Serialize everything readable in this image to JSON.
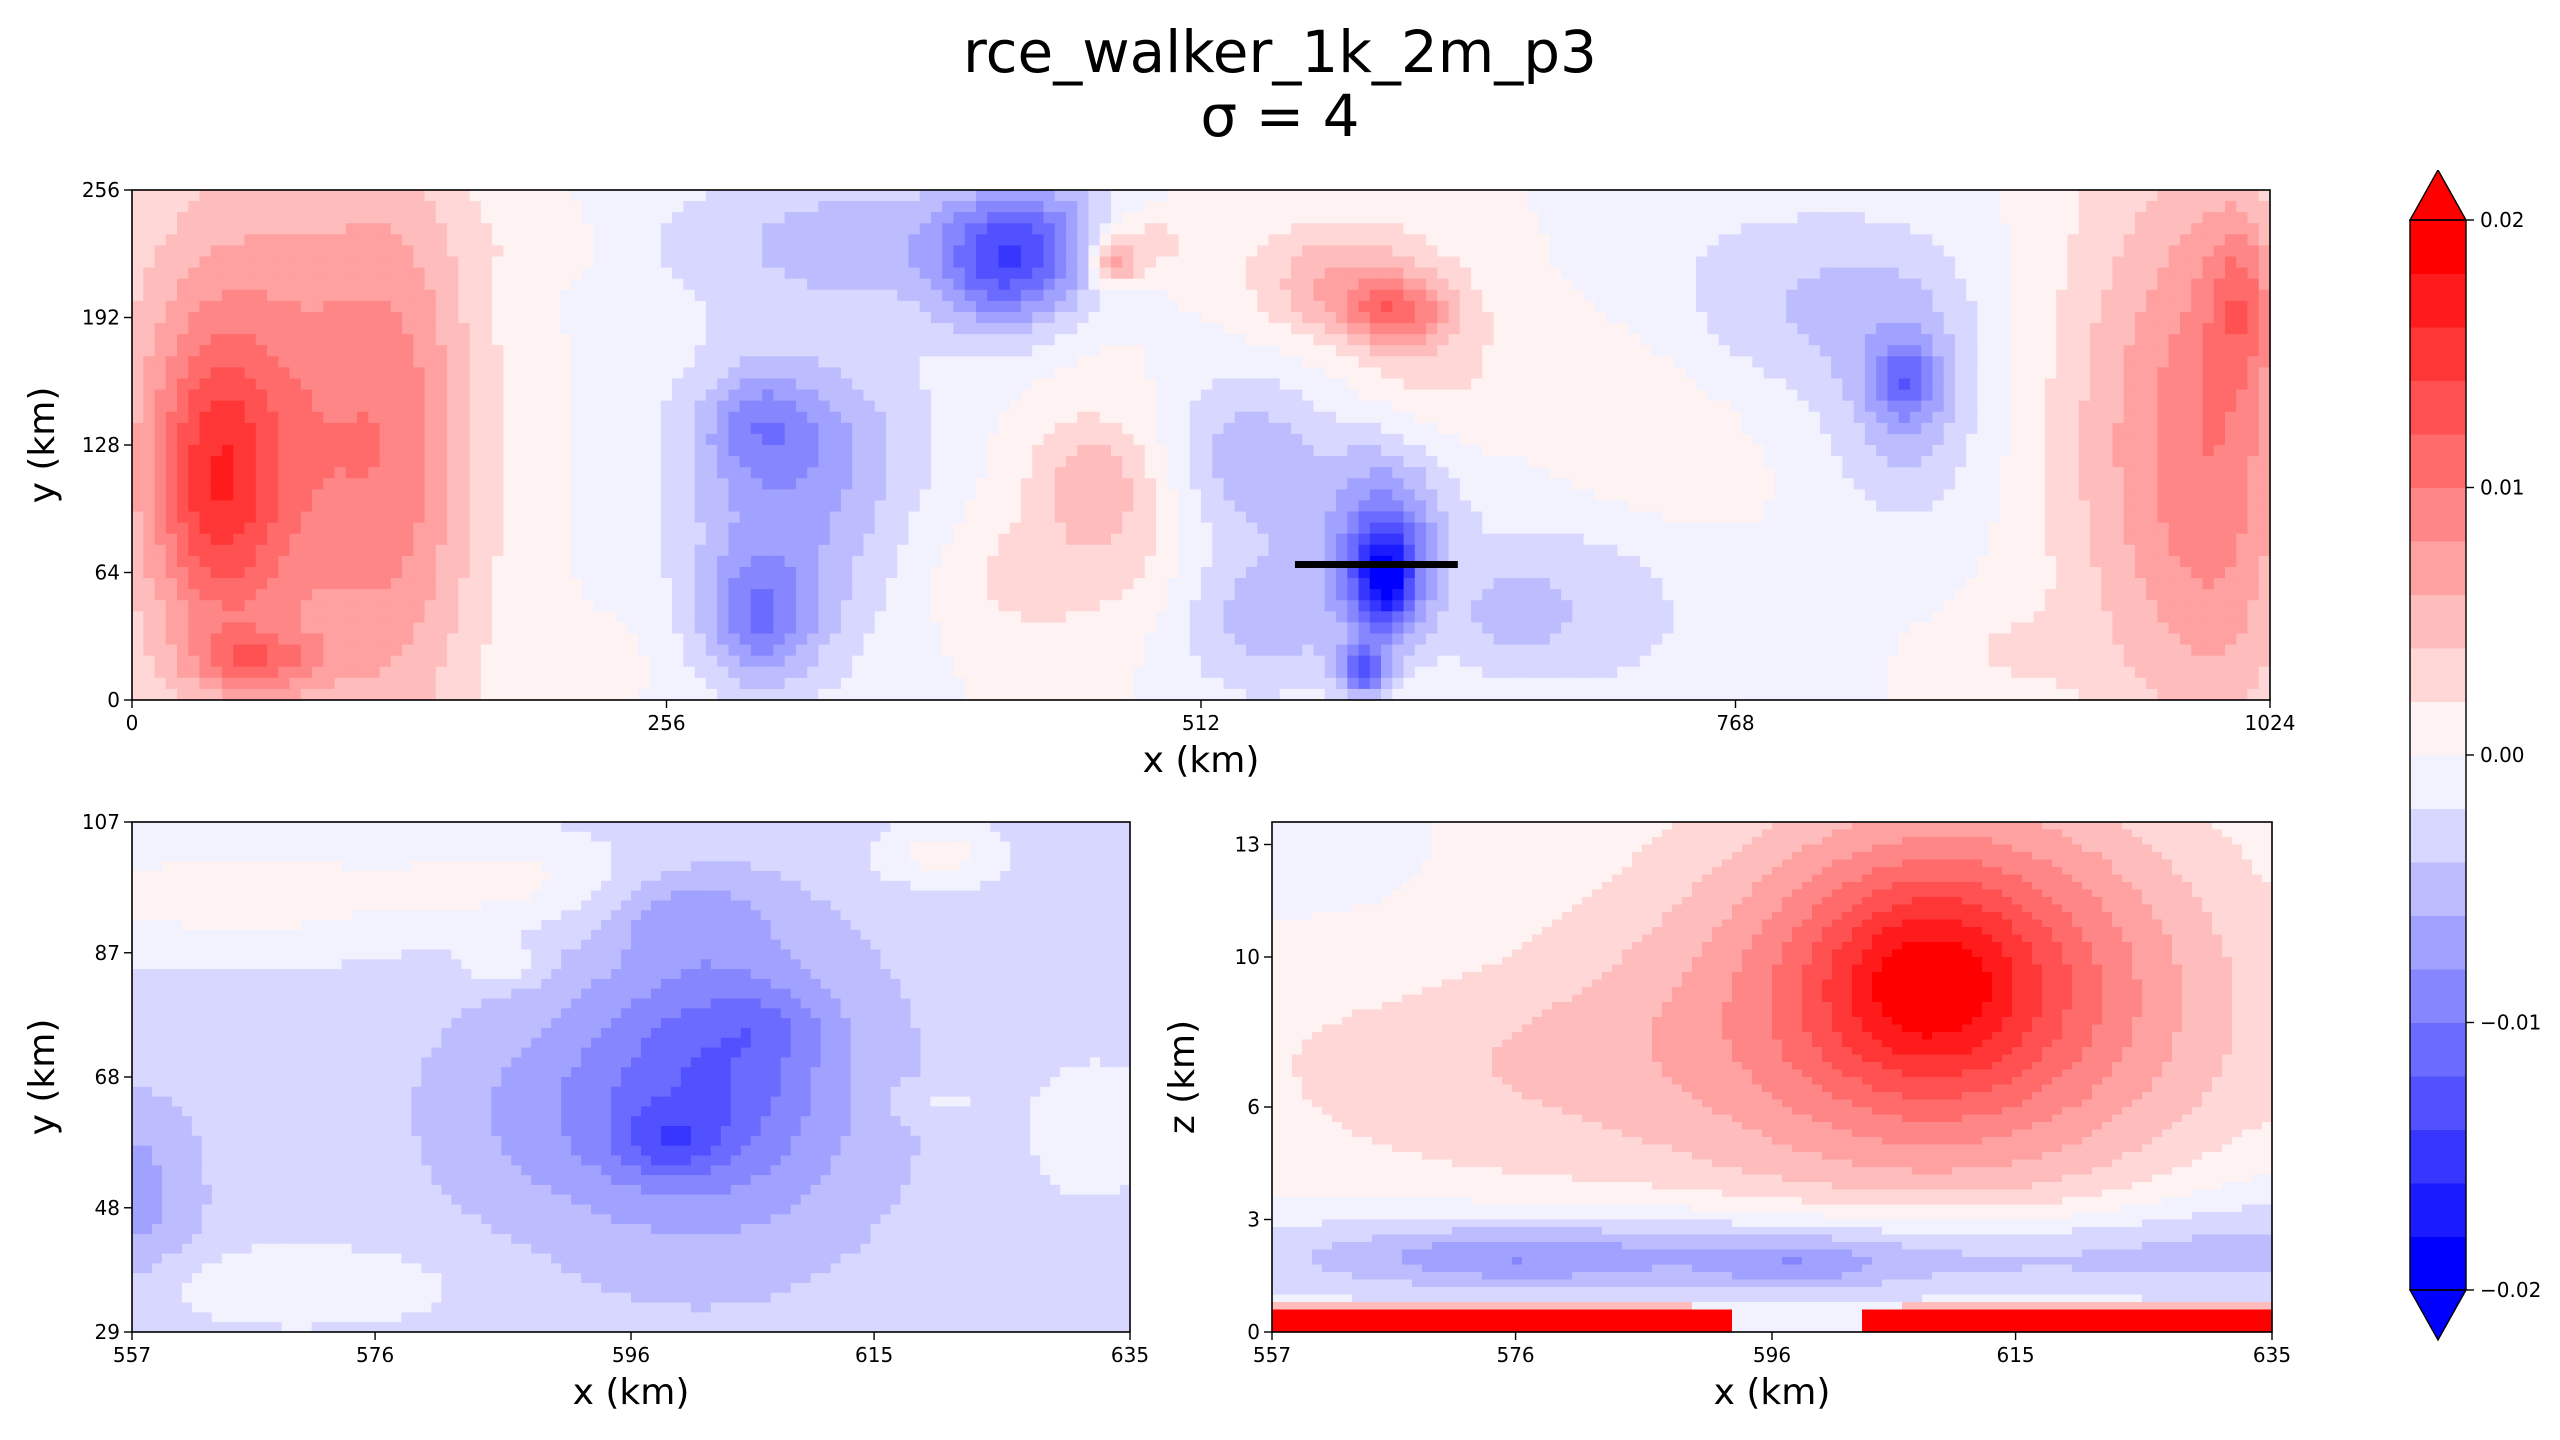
{
  "figure": {
    "title": "rce_walker_1k_2m_p3",
    "subtitle": "σ = 4"
  },
  "chart_data": [
    {
      "id": "top",
      "type": "heatmap",
      "xlabel": "x (km)",
      "ylabel": "y (km)",
      "xlim": [
        0,
        1024
      ],
      "ylim": [
        0,
        256
      ],
      "xticks": [
        "0",
        "256",
        "512",
        "768",
        "1024"
      ],
      "yticks": [
        "0",
        "64",
        "128",
        "192",
        "256"
      ],
      "xtick_values": [
        0,
        256,
        512,
        768,
        1024
      ],
      "ytick_values": [
        0,
        64,
        128,
        192,
        256
      ],
      "annotation_line": {
        "x0": 557,
        "x1": 635,
        "y": 68
      },
      "blobs": [
        {
          "x": 60,
          "y": 128,
          "rx": 70,
          "ry": 150,
          "v": 0.009
        },
        {
          "x": 40,
          "y": 110,
          "rx": 30,
          "ry": 70,
          "v": 0.008
        },
        {
          "x": 60,
          "y": 20,
          "rx": 30,
          "ry": 15,
          "v": 0.006
        },
        {
          "x": 130,
          "y": 128,
          "rx": 40,
          "ry": 160,
          "v": 0.006
        },
        {
          "x": 1000,
          "y": 128,
          "rx": 40,
          "ry": 150,
          "v": 0.009
        },
        {
          "x": 1010,
          "y": 200,
          "rx": 15,
          "ry": 40,
          "v": 0.005
        },
        {
          "x": 950,
          "y": 128,
          "rx": 40,
          "ry": 150,
          "v": 0.004
        },
        {
          "x": 320,
          "y": 130,
          "rx": 60,
          "ry": 50,
          "v": -0.006
        },
        {
          "x": 300,
          "y": 140,
          "rx": 25,
          "ry": 25,
          "v": -0.004
        },
        {
          "x": 310,
          "y": 60,
          "rx": 50,
          "ry": 60,
          "v": -0.005
        },
        {
          "x": 300,
          "y": 40,
          "rx": 25,
          "ry": 30,
          "v": -0.006
        },
        {
          "x": 350,
          "y": 230,
          "rx": 100,
          "ry": 40,
          "v": -0.005
        },
        {
          "x": 440,
          "y": 230,
          "rx": 40,
          "ry": 30,
          "v": -0.007
        },
        {
          "x": 415,
          "y": 215,
          "rx": 30,
          "ry": 35,
          "v": -0.007
        },
        {
          "x": 530,
          "y": 120,
          "rx": 45,
          "ry": 45,
          "v": -0.006
        },
        {
          "x": 600,
          "y": 80,
          "rx": 30,
          "ry": 50,
          "v": -0.009
        },
        {
          "x": 600,
          "y": 60,
          "rx": 15,
          "ry": 25,
          "v": -0.012
        },
        {
          "x": 590,
          "y": 15,
          "rx": 12,
          "ry": 12,
          "v": -0.011
        },
        {
          "x": 540,
          "y": 40,
          "rx": 45,
          "ry": 40,
          "v": -0.005
        },
        {
          "x": 700,
          "y": 60,
          "rx": 60,
          "ry": 60,
          "v": -0.004
        },
        {
          "x": 660,
          "y": 40,
          "rx": 25,
          "ry": 25,
          "v": -0.003
        },
        {
          "x": 800,
          "y": 200,
          "rx": 70,
          "ry": 50,
          "v": -0.004
        },
        {
          "x": 850,
          "y": 150,
          "rx": 35,
          "ry": 60,
          "v": -0.005
        },
        {
          "x": 850,
          "y": 160,
          "rx": 15,
          "ry": 20,
          "v": -0.006
        },
        {
          "x": 475,
          "y": 95,
          "rx": 50,
          "ry": 60,
          "v": 0.004
        },
        {
          "x": 460,
          "y": 110,
          "rx": 25,
          "ry": 25,
          "v": 0.003
        },
        {
          "x": 480,
          "y": 230,
          "rx": 30,
          "ry": 20,
          "v": 0.005
        },
        {
          "x": 470,
          "y": 220,
          "rx": 12,
          "ry": 12,
          "v": 0.008
        },
        {
          "x": 580,
          "y": 210,
          "rx": 45,
          "ry": 30,
          "v": 0.006
        },
        {
          "x": 605,
          "y": 195,
          "rx": 25,
          "ry": 15,
          "v": 0.007
        },
        {
          "x": 620,
          "y": 170,
          "rx": 40,
          "ry": 40,
          "v": 0.003
        },
        {
          "x": 720,
          "y": 120,
          "rx": 50,
          "ry": 60,
          "v": 0.003
        },
        {
          "x": 900,
          "y": 25,
          "rx": 30,
          "ry": 20,
          "v": 0.002
        },
        {
          "x": 220,
          "y": 20,
          "rx": 25,
          "ry": 18,
          "v": 0.002
        },
        {
          "x": 200,
          "y": 230,
          "rx": 25,
          "ry": 18,
          "v": 0.002
        },
        {
          "x": 420,
          "y": 60,
          "rx": 35,
          "ry": 30,
          "v": 0.002
        }
      ]
    },
    {
      "id": "bottom-left",
      "type": "heatmap",
      "xlabel": "x (km)",
      "ylabel": "y (km)",
      "xlim": [
        557,
        635
      ],
      "ylim": [
        29,
        107
      ],
      "xticks": [
        "557",
        "576",
        "596",
        "615",
        "635"
      ],
      "yticks": [
        "29",
        "48",
        "68",
        "87",
        "107"
      ],
      "xtick_values": [
        557,
        576,
        596,
        615,
        635
      ],
      "ytick_values": [
        29,
        48,
        68,
        87,
        107
      ],
      "base": -0.003,
      "blobs": [
        {
          "x": 601,
          "y": 65,
          "rx": 14,
          "ry": 25,
          "v": -0.005
        },
        {
          "x": 603,
          "y": 70,
          "rx": 8,
          "ry": 18,
          "v": -0.004
        },
        {
          "x": 599,
          "y": 58,
          "rx": 4,
          "ry": 5,
          "v": -0.004
        },
        {
          "x": 607,
          "y": 76,
          "rx": 4,
          "ry": 5,
          "v": -0.002
        },
        {
          "x": 600,
          "y": 93,
          "rx": 6,
          "ry": 6,
          "v": -0.003
        },
        {
          "x": 590,
          "y": 62,
          "rx": 10,
          "ry": 14,
          "v": -0.002
        },
        {
          "x": 557,
          "y": 50,
          "rx": 5,
          "ry": 14,
          "v": -0.004
        },
        {
          "x": 565,
          "y": 96,
          "rx": 18,
          "ry": 10,
          "v": 0.004
        },
        {
          "x": 588,
          "y": 98,
          "rx": 10,
          "ry": 8,
          "v": 0.003
        },
        {
          "x": 586,
          "y": 85,
          "rx": 3,
          "ry": 3,
          "v": 0.003
        },
        {
          "x": 620,
          "y": 102,
          "rx": 5,
          "ry": 5,
          "v": 0.004
        },
        {
          "x": 570,
          "y": 36,
          "rx": 12,
          "ry": 6,
          "v": 0.003
        },
        {
          "x": 632,
          "y": 60,
          "rx": 5,
          "ry": 10,
          "v": 0.003
        },
        {
          "x": 620,
          "y": 64,
          "rx": 4,
          "ry": 3,
          "v": 0.002
        }
      ]
    },
    {
      "id": "bottom-right",
      "type": "heatmap",
      "xlabel": "x (km)",
      "ylabel": "z (km)",
      "xlim": [
        557,
        635
      ],
      "ylim": [
        0,
        13.6
      ],
      "xticks": [
        "557",
        "576",
        "596",
        "615",
        "635"
      ],
      "yticks": [
        "0",
        "3",
        "6",
        "10",
        "13"
      ],
      "xtick_values": [
        557,
        576,
        596,
        615,
        635
      ],
      "ytick_values": [
        0,
        3,
        6,
        10,
        13
      ],
      "blobs": [
        {
          "x": 610,
          "y": 9.5,
          "rx": 18,
          "ry": 5,
          "v": 0.012
        },
        {
          "x": 608,
          "y": 9.3,
          "rx": 8,
          "ry": 2.5,
          "v": 0.006
        },
        {
          "x": 600,
          "y": 7,
          "rx": 40,
          "ry": 5,
          "v": 0.003
        },
        {
          "x": 575,
          "y": 7.5,
          "rx": 20,
          "ry": 3,
          "v": 0.002
        },
        {
          "x": 568,
          "y": 10,
          "rx": 12,
          "ry": 2,
          "v": -0.001
        },
        {
          "x": 596,
          "y": 2,
          "rx": 50,
          "ry": 1.3,
          "v": -0.007
        },
        {
          "x": 575,
          "y": 2,
          "rx": 10,
          "ry": 0.7,
          "v": -0.003
        },
        {
          "x": 598,
          "y": 1.8,
          "rx": 6,
          "ry": 0.6,
          "v": -0.003
        },
        {
          "x": 557,
          "y": 13,
          "rx": 10,
          "ry": 1.5,
          "v": -0.002
        },
        {
          "x": 635,
          "y": 3,
          "rx": 12,
          "ry": 2,
          "v": -0.002
        }
      ],
      "layers": [
        {
          "y0": 0,
          "y1": 0.55,
          "v": 0.02,
          "x_gap": [
            593,
            603
          ]
        },
        {
          "y0": 0.55,
          "y1": 0.9,
          "v": 0.006,
          "x_gap": [
            590,
            606
          ]
        }
      ]
    }
  ],
  "colorbar": {
    "ticks": [
      "0.02",
      "0.01",
      "0.00",
      "−0.01",
      "−0.02"
    ],
    "tick_values": [
      0.02,
      0.01,
      0.0,
      -0.01,
      -0.02
    ],
    "levels": [
      -0.02,
      -0.018,
      -0.016,
      -0.014,
      -0.012,
      -0.01,
      -0.008,
      -0.006,
      -0.004,
      -0.002,
      0.0,
      0.002,
      0.004,
      0.006,
      0.008,
      0.01,
      0.012,
      0.014,
      0.016,
      0.018,
      0.02
    ],
    "low_color": "#0000ff",
    "high_color": "#ff0000",
    "mid_color": "#ffffff",
    "extend": "both"
  },
  "annotation_color": "#000000"
}
